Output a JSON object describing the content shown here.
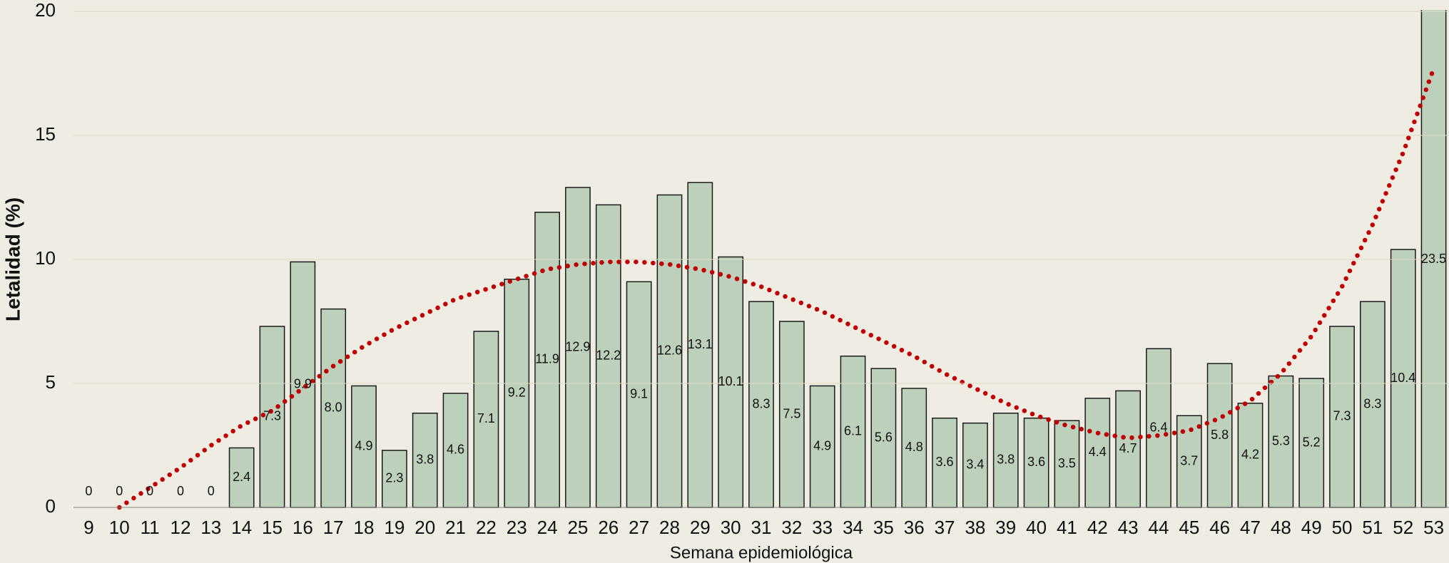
{
  "chart_data": {
    "type": "bar",
    "categories": [
      "9",
      "10",
      "11",
      "12",
      "13",
      "14",
      "15",
      "16",
      "17",
      "18",
      "19",
      "20",
      "21",
      "22",
      "23",
      "24",
      "25",
      "26",
      "27",
      "28",
      "29",
      "30",
      "31",
      "32",
      "33",
      "34",
      "35",
      "36",
      "37",
      "38",
      "39",
      "40",
      "41",
      "42",
      "43",
      "44",
      "45",
      "46",
      "47",
      "48",
      "49",
      "50",
      "51",
      "52",
      "53"
    ],
    "values": [
      0,
      0,
      0,
      0,
      0,
      2.4,
      7.3,
      9.9,
      8,
      4.9,
      2.3,
      3.8,
      4.6,
      7.1,
      9.2,
      11.9,
      12.9,
      12.2,
      9.1,
      12.6,
      13.1,
      10.1,
      8.3,
      7.5,
      4.9,
      6.1,
      5.6,
      4.8,
      3.6,
      3.4,
      3.8,
      3.6,
      3.5,
      4.4,
      4.7,
      6.4,
      3.7,
      5.8,
      4.2,
      5.3,
      5.2,
      7.3,
      8.3,
      10.4,
      23.5
    ],
    "value_labels": [
      "0",
      "0",
      "0",
      "0",
      "0",
      "2.4",
      "7.3",
      "9.9",
      "8.0",
      "4.9",
      "2.3",
      "3.8",
      "4.6",
      "7.1",
      "9.2",
      "11.9",
      "12.9",
      "12.2",
      "9.1",
      "12.6",
      "13.1",
      "10.1",
      "8.3",
      "7.5",
      "4.9",
      "6.1",
      "5.6",
      "4.8",
      "3.6",
      "3.4",
      "3.8",
      "3.6",
      "3.5",
      "4.4",
      "4.7",
      "6.4",
      "3.7",
      "5.8",
      "4.2",
      "5.3",
      "5.2",
      "7.3",
      "8.3",
      "10.4",
      "23.5"
    ],
    "color": "#bdd0bc",
    "trendline": {
      "color": "#c00000",
      "values": [
        null,
        0,
        0.8,
        1.6,
        2.5,
        3.3,
        3.9,
        4.8,
        5.7,
        6.5,
        7.2,
        7.8,
        8.4,
        8.8,
        9.2,
        9.6,
        9.8,
        9.9,
        9.9,
        9.8,
        9.6,
        9.3,
        8.9,
        8.4,
        7.9,
        7.3,
        6.7,
        6.1,
        5.4,
        4.8,
        4.2,
        3.7,
        3.3,
        3.0,
        2.8,
        2.9,
        3.1,
        3.6,
        4.3,
        5.4,
        6.9,
        8.9,
        11.4,
        14.3,
        17.7
      ]
    },
    "xlabel": "Semana epidemiológica",
    "ylabel": "Letalidad (%)",
    "ylim": [
      0,
      20
    ],
    "yticks": [
      0,
      5,
      10,
      15,
      20
    ],
    "grid": true
  }
}
